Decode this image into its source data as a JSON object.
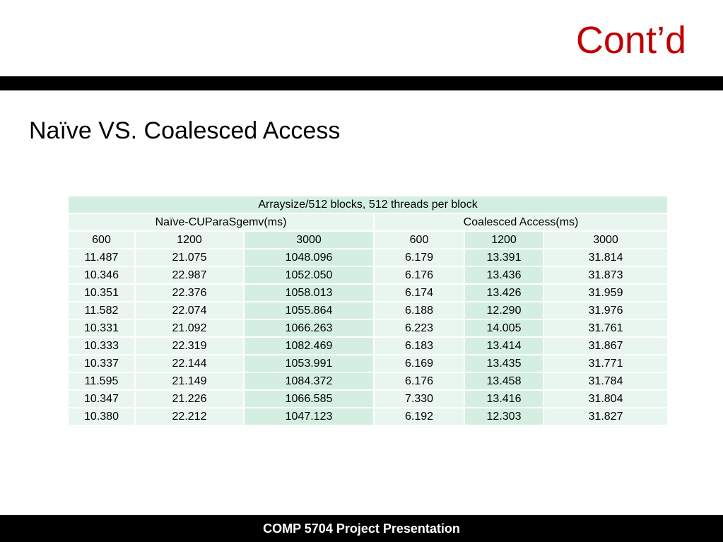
{
  "slide": {
    "title": "Cont’d",
    "subtitle": "Naïve VS. Coalesced Access",
    "footer": "COMP 5704 Project Presentation"
  },
  "table": {
    "caption": "Arraysize/512 blocks, 512 threads per block",
    "groups": [
      "Naïve-CUParaSgemv(ms)",
      "Coalesced Access(ms)"
    ],
    "columns": [
      "600",
      "1200",
      "3000",
      "600",
      "1200",
      "3000"
    ],
    "rows": [
      [
        "11.487",
        "21.075",
        "1048.096",
        "6.179",
        "13.391",
        "31.814"
      ],
      [
        "10.346",
        "22.987",
        "1052.050",
        "6.176",
        "13.436",
        "31.873"
      ],
      [
        "10.351",
        "22.376",
        "1058.013",
        "6.174",
        "13.426",
        "31.959"
      ],
      [
        "11.582",
        "22.074",
        "1055.864",
        "6.188",
        "12.290",
        "31.976"
      ],
      [
        "10.331",
        "21.092",
        "1066.263",
        "6.223",
        "14.005",
        "31.761"
      ],
      [
        "10.333",
        "22.319",
        "1082.469",
        "6.183",
        "13.414",
        "31.867"
      ],
      [
        "10.337",
        "22.144",
        "1053.991",
        "6.169",
        "13.435",
        "31.771"
      ],
      [
        "11.595",
        "21.149",
        "1084.372",
        "6.176",
        "13.458",
        "31.784"
      ],
      [
        "10.347",
        "21.226",
        "1066.585",
        "7.330",
        "13.416",
        "31.804"
      ],
      [
        "10.380",
        "22.212",
        "1047.123",
        "6.192",
        "12.303",
        "31.827"
      ]
    ]
  }
}
